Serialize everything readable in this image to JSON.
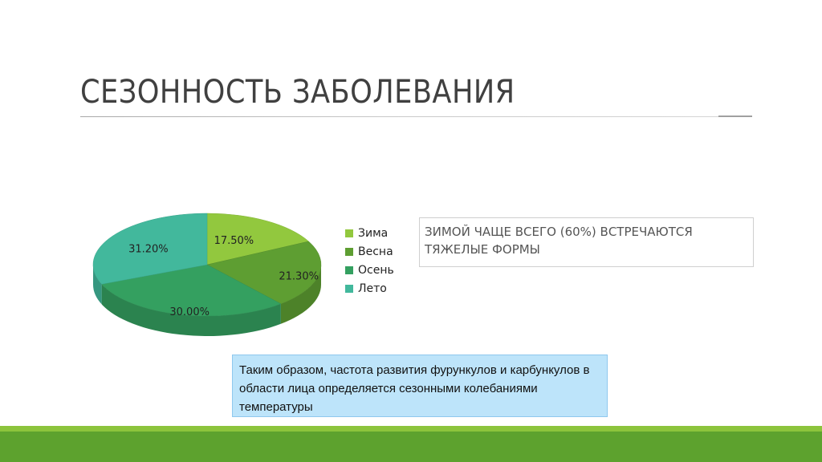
{
  "slide": {
    "title": "СЕЗОННОСТЬ ЗАБОЛЕВАНИЯ",
    "callout": "ЗИМОЙ ЧАЩЕ ВСЕГО (60%) ВСТРЕЧАЮТСЯ ТЯЖЕЛЫЕ ФОРМЫ",
    "conclusion": "Таким образом, частота развития фурункулов и карбункулов в области лица определяется сезонными колебаниями температуры"
  },
  "colors": {
    "accent_light": "#8cc43c",
    "accent_dark": "#5da22e",
    "conclusion_bg": "#bde4fa"
  },
  "chart_data": {
    "type": "pie",
    "style": "3d",
    "legend_position": "right",
    "categories": [
      "Зима",
      "Весна",
      "Осень",
      "Лето"
    ],
    "values": [
      17.5,
      21.3,
      30.0,
      31.2
    ],
    "labels": [
      "17.50%",
      "21.30%",
      "30.00%",
      "31.20%"
    ],
    "colors": [
      "#92c83e",
      "#5e9e32",
      "#34a060",
      "#42b89c"
    ]
  }
}
